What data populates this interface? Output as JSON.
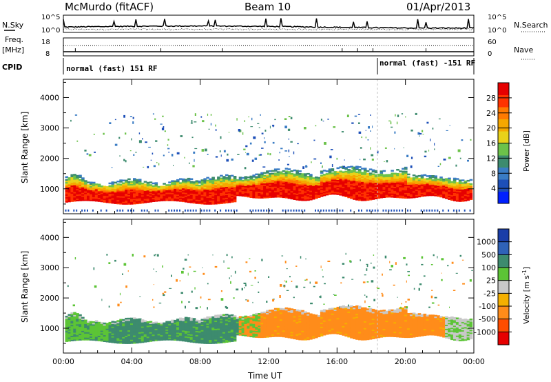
{
  "header": {
    "station": "McMurdo (fitACF)",
    "beam": "Beam 10",
    "date": "01/Apr/2013"
  },
  "strip_panels": {
    "nsky_label": "N.Sky",
    "nsky_ticks": [
      "10^5",
      "10^0"
    ],
    "nsearch_label": "N.Search",
    "nsearch_ticks": [
      "10^5",
      "10^0"
    ],
    "freq_label": "Freq.",
    "freq_unit": "[MHz]",
    "freq_ticks": [
      "18",
      "8"
    ],
    "nave_label": "Nave",
    "nave_ticks": [
      "60",
      "0"
    ],
    "cpid_label": "CPID",
    "cpid_segments": [
      {
        "label": "normal (fast) 151 RF",
        "start_hour": 0,
        "end_hour": 18.1
      },
      {
        "label": "normal (fast) -151 RF",
        "start_hour": 18.1,
        "end_hour": 24
      }
    ]
  },
  "chart_data": [
    {
      "type": "heatmap",
      "name": "power-panel",
      "ylabel": "Slant Range [km]",
      "xlabel": "",
      "x_tick_labels": [
        "00:00",
        "04:00",
        "08:00",
        "12:00",
        "16:00",
        "20:00",
        "00:00"
      ],
      "x_ticks_hours": [
        0,
        4,
        8,
        12,
        16,
        20,
        24
      ],
      "xlim_hours": [
        0,
        24
      ],
      "y_ticks": [
        1000,
        2000,
        3000,
        4000
      ],
      "ylim": [
        180,
        4600
      ],
      "colorbar": {
        "label": "Power [dB]",
        "ticks": [
          "4",
          "8",
          "12",
          "16",
          "20",
          "24",
          "28"
        ],
        "tick_values": [
          4,
          8,
          12,
          16,
          20,
          24,
          28
        ],
        "range": [
          0,
          32
        ],
        "colors": [
          "#0020ff",
          "#1d4fb8",
          "#3a7cc4",
          "#3d8b6e",
          "#6cc24a",
          "#e8d21a",
          "#f5a800",
          "#ff7a00",
          "#ff3300",
          "#e60000"
        ]
      }
    },
    {
      "type": "heatmap",
      "name": "velocity-panel",
      "ylabel": "Slant Range [km]",
      "xlabel": "Time UT",
      "x_tick_labels": [
        "00:00",
        "04:00",
        "08:00",
        "12:00",
        "16:00",
        "20:00",
        "00:00"
      ],
      "x_ticks_hours": [
        0,
        4,
        8,
        12,
        16,
        20,
        24
      ],
      "xlim_hours": [
        0,
        24
      ],
      "y_ticks": [
        1000,
        2000,
        3000,
        4000
      ],
      "ylim": [
        180,
        4600
      ],
      "colorbar": {
        "label": "Velocity [m s^-1]",
        "ticks": [
          "1000",
          "500",
          "100",
          "25",
          "-25",
          "-100",
          "-500",
          "-1000"
        ],
        "colors": [
          "#1a3ea8",
          "#2f62b8",
          "#3d8b6e",
          "#5cc436",
          "#c8c8c8",
          "#f5b000",
          "#ff8c1a",
          "#ff4d00",
          "#e60000"
        ]
      }
    }
  ],
  "colors": {
    "power_scatter": [
      "#e60000",
      "#ff3300",
      "#ff7a00",
      "#f5a800",
      "#e8d21a",
      "#6cc24a",
      "#3d8b6e",
      "#3a7cc4",
      "#1d4fb8"
    ],
    "vel_green": "#3d8b6e",
    "vel_lightgreen": "#5cc436",
    "vel_orange": "#ff8c1a",
    "vel_gray": "#c8c8c8"
  }
}
